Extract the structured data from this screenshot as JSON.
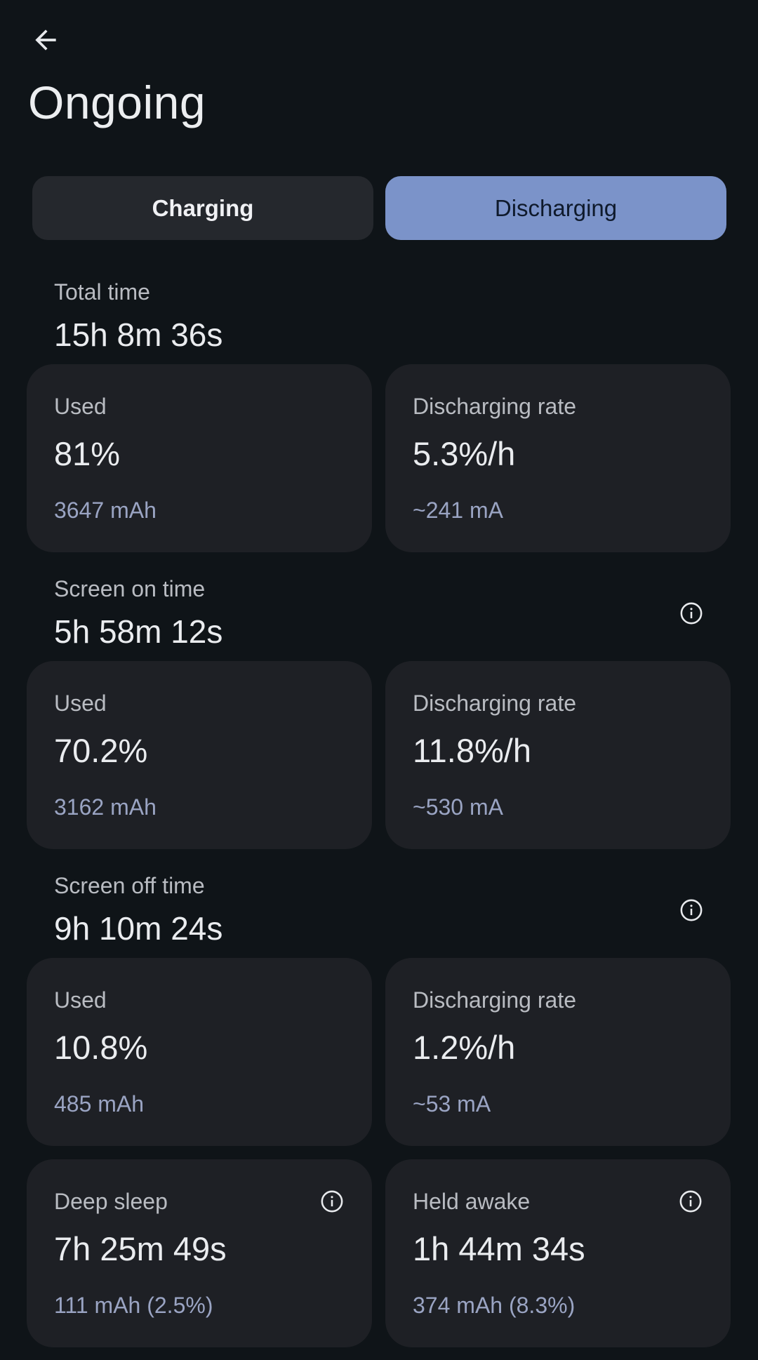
{
  "header": {
    "back_icon": "arrow-left-icon",
    "title": "Ongoing"
  },
  "tabs": [
    {
      "label": "Charging",
      "selected": false
    },
    {
      "label": "Discharging",
      "selected": true
    }
  ],
  "total": {
    "label": "Total time",
    "value": "15h 8m 36s",
    "used": {
      "label": "Used",
      "value": "81%",
      "sub": "3647 mAh"
    },
    "rate": {
      "label": "Discharging rate",
      "value": "5.3%/h",
      "sub": "~241 mA"
    }
  },
  "screen_on": {
    "label": "Screen on time",
    "value": "5h 58m 12s",
    "info_icon": "info-icon",
    "used": {
      "label": "Used",
      "value": "70.2%",
      "sub": "3162 mAh"
    },
    "rate": {
      "label": "Discharging rate",
      "value": "11.8%/h",
      "sub": "~530 mA"
    }
  },
  "screen_off": {
    "label": "Screen off time",
    "value": "9h 10m 24s",
    "info_icon": "info-icon",
    "used": {
      "label": "Used",
      "value": "10.8%",
      "sub": "485 mAh"
    },
    "rate": {
      "label": "Discharging rate",
      "value": "1.2%/h",
      "sub": "~53 mA"
    }
  },
  "deep_sleep": {
    "label": "Deep sleep",
    "value": "7h 25m 49s",
    "sub": "111 mAh (2.5%)",
    "info_icon": "info-icon"
  },
  "held_awake": {
    "label": "Held awake",
    "value": "1h 44m 34s",
    "sub": "374 mAh (8.3%)",
    "info_icon": "info-icon"
  },
  "colors": {
    "background": "#0f1418",
    "card": "#1e2025",
    "accent": "#7b93c9",
    "secondary_text": "#9aa4c3"
  }
}
